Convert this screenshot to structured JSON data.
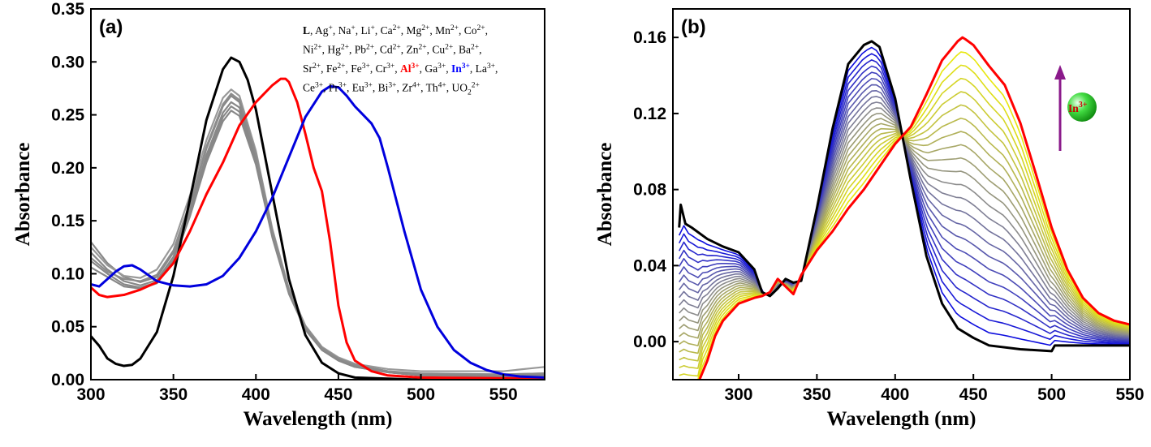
{
  "chart_data": [
    {
      "panel_label": "(a)",
      "type": "line",
      "xlabel": "Wavelength (nm)",
      "ylabel": "Absorbance",
      "xlim": [
        300,
        575
      ],
      "ylim": [
        0,
        0.35
      ],
      "xticks": [
        300,
        350,
        400,
        450,
        500,
        550
      ],
      "yticks": [
        0.0,
        0.05,
        0.1,
        0.15,
        0.2,
        0.25,
        0.3,
        0.35
      ],
      "grid": false,
      "legend_lines": [
        [
          {
            "t": "L",
            "b": true
          },
          {
            "t": ", Ag"
          },
          {
            "sup": "+"
          },
          {
            "t": ", Na"
          },
          {
            "sup": "+"
          },
          {
            "t": ", Li"
          },
          {
            "sup": "+"
          },
          {
            "t": ", Ca"
          },
          {
            "sup": "2+"
          },
          {
            "t": ", Mg"
          },
          {
            "sup": "2+"
          },
          {
            "t": ", Mn"
          },
          {
            "sup": "2+"
          },
          {
            "t": ", Co"
          },
          {
            "sup": "2+"
          },
          {
            "t": ","
          }
        ],
        [
          {
            "t": "Ni"
          },
          {
            "sup": "2+"
          },
          {
            "t": ", Hg"
          },
          {
            "sup": "2+"
          },
          {
            "t": ", Pb"
          },
          {
            "sup": "2+"
          },
          {
            "t": ", Cd"
          },
          {
            "sup": "2+"
          },
          {
            "t": ", Zn"
          },
          {
            "sup": "2+"
          },
          {
            "t": ", Cu"
          },
          {
            "sup": "2+"
          },
          {
            "t": ", Ba"
          },
          {
            "sup": "2+"
          },
          {
            "t": ","
          }
        ],
        [
          {
            "t": "Sr"
          },
          {
            "sup": "2+"
          },
          {
            "t": ", Fe"
          },
          {
            "sup": "2+"
          },
          {
            "t": ", Fe"
          },
          {
            "sup": "3+"
          },
          {
            "t": ", Cr"
          },
          {
            "sup": "3+"
          },
          {
            "t": ", "
          },
          {
            "t": "Al",
            "b": true,
            "c": "#ff0000"
          },
          {
            "sup": "3+",
            "b": true,
            "c": "#ff0000"
          },
          {
            "t": ", Ga"
          },
          {
            "sup": "3+"
          },
          {
            "t": ", "
          },
          {
            "t": "In",
            "b": true,
            "c": "#0000ff"
          },
          {
            "sup": "3+",
            "b": true,
            "c": "#0000ff"
          },
          {
            "t": ", La"
          },
          {
            "sup": "3+"
          },
          {
            "t": ","
          }
        ],
        [
          {
            "t": "Ce"
          },
          {
            "sup": "3+"
          },
          {
            "t": ", Pr"
          },
          {
            "sup": "3+"
          },
          {
            "t": ", Eu"
          },
          {
            "sup": "3+"
          },
          {
            "t": ", Bi"
          },
          {
            "sup": "3+"
          },
          {
            "t": ", Zr"
          },
          {
            "sup": "4+"
          },
          {
            "t": ", Th"
          },
          {
            "sup": "4+"
          },
          {
            "t": ", UO"
          },
          {
            "sub": "2"
          },
          {
            "sup": "2+"
          }
        ]
      ],
      "series": [
        {
          "color": "#888888",
          "x": [
            300,
            310,
            320,
            330,
            340,
            350,
            360,
            370,
            380,
            385,
            390,
            400,
            410,
            420,
            430,
            440,
            450,
            460,
            480,
            500,
            550,
            575
          ],
          "y": [
            0.13,
            0.11,
            0.097,
            0.092,
            0.097,
            0.12,
            0.165,
            0.218,
            0.258,
            0.268,
            0.262,
            0.212,
            0.14,
            0.085,
            0.05,
            0.03,
            0.02,
            0.014,
            0.008,
            0.005,
            0.005,
            0.006
          ]
        },
        {
          "color": "#888888",
          "x": [
            300,
            310,
            320,
            330,
            340,
            350,
            360,
            370,
            380,
            385,
            390,
            400,
            410,
            420,
            430,
            440,
            450,
            460,
            480,
            500,
            550,
            575
          ],
          "y": [
            0.12,
            0.104,
            0.093,
            0.089,
            0.094,
            0.116,
            0.16,
            0.212,
            0.252,
            0.262,
            0.257,
            0.209,
            0.138,
            0.083,
            0.049,
            0.029,
            0.019,
            0.013,
            0.007,
            0.004,
            0.004,
            0.005
          ]
        },
        {
          "color": "#888888",
          "x": [
            300,
            310,
            320,
            330,
            340,
            350,
            360,
            370,
            380,
            385,
            390,
            400,
            410,
            420,
            430,
            440,
            450,
            460,
            480,
            500,
            550,
            575
          ],
          "y": [
            0.112,
            0.1,
            0.09,
            0.087,
            0.092,
            0.113,
            0.157,
            0.208,
            0.248,
            0.258,
            0.253,
            0.206,
            0.136,
            0.082,
            0.048,
            0.028,
            0.018,
            0.012,
            0.007,
            0.004,
            0.004,
            0.004
          ]
        },
        {
          "color": "#888888",
          "x": [
            300,
            310,
            320,
            330,
            340,
            350,
            360,
            370,
            380,
            385,
            390,
            400,
            410,
            420,
            430,
            440,
            450,
            460,
            480,
            500,
            550,
            575
          ],
          "y": [
            0.106,
            0.097,
            0.088,
            0.086,
            0.091,
            0.111,
            0.154,
            0.205,
            0.244,
            0.254,
            0.249,
            0.203,
            0.134,
            0.081,
            0.047,
            0.028,
            0.018,
            0.012,
            0.007,
            0.004,
            0.003,
            0.004
          ]
        },
        {
          "color": "#999999",
          "x": [
            300,
            310,
            320,
            330,
            340,
            350,
            360,
            370,
            380,
            385,
            390,
            400,
            410,
            420,
            430,
            440,
            450,
            460,
            480,
            500,
            550,
            575
          ],
          "y": [
            0.125,
            0.108,
            0.098,
            0.096,
            0.104,
            0.128,
            0.174,
            0.226,
            0.266,
            0.274,
            0.268,
            0.216,
            0.142,
            0.086,
            0.051,
            0.031,
            0.021,
            0.015,
            0.01,
            0.008,
            0.008,
            0.012
          ]
        },
        {
          "color": "#8c8c8c",
          "x": [
            300,
            310,
            320,
            330,
            340,
            350,
            360,
            370,
            380,
            385,
            390,
            400,
            410,
            420,
            430,
            440,
            450,
            460,
            480,
            500,
            550,
            575
          ],
          "y": [
            0.115,
            0.102,
            0.095,
            0.093,
            0.099,
            0.122,
            0.167,
            0.22,
            0.26,
            0.27,
            0.264,
            0.213,
            0.14,
            0.084,
            0.05,
            0.03,
            0.02,
            0.014,
            0.008,
            0.006,
            0.005,
            0.006
          ]
        },
        {
          "color": "#000000",
          "x": [
            300,
            305,
            310,
            315,
            320,
            325,
            330,
            340,
            350,
            360,
            370,
            380,
            385,
            390,
            395,
            400,
            410,
            420,
            430,
            440,
            450,
            460,
            480,
            500,
            575
          ],
          "y": [
            0.041,
            0.032,
            0.02,
            0.015,
            0.013,
            0.014,
            0.02,
            0.045,
            0.098,
            0.17,
            0.245,
            0.293,
            0.304,
            0.3,
            0.283,
            0.255,
            0.175,
            0.095,
            0.042,
            0.016,
            0.006,
            0.002,
            0.001,
            0.0,
            0.0
          ]
        },
        {
          "color": "#ff0000",
          "x": [
            300,
            305,
            310,
            320,
            330,
            340,
            350,
            360,
            370,
            380,
            390,
            400,
            405,
            410,
            415,
            418,
            420,
            425,
            430,
            435,
            440,
            445,
            450,
            455,
            460,
            470,
            480,
            500,
            575
          ],
          "y": [
            0.087,
            0.08,
            0.078,
            0.08,
            0.085,
            0.092,
            0.11,
            0.14,
            0.175,
            0.205,
            0.24,
            0.262,
            0.27,
            0.278,
            0.284,
            0.284,
            0.281,
            0.262,
            0.232,
            0.2,
            0.178,
            0.13,
            0.07,
            0.035,
            0.018,
            0.008,
            0.004,
            0.002,
            0.001
          ]
        },
        {
          "color": "#0000dd",
          "x": [
            300,
            305,
            310,
            315,
            320,
            325,
            330,
            340,
            350,
            360,
            370,
            380,
            390,
            400,
            410,
            420,
            430,
            440,
            445,
            450,
            455,
            460,
            465,
            470,
            475,
            480,
            490,
            500,
            510,
            520,
            530,
            540,
            550,
            560,
            575
          ],
          "y": [
            0.09,
            0.088,
            0.095,
            0.102,
            0.107,
            0.108,
            0.104,
            0.093,
            0.089,
            0.088,
            0.09,
            0.098,
            0.115,
            0.14,
            0.172,
            0.21,
            0.248,
            0.272,
            0.277,
            0.276,
            0.268,
            0.258,
            0.25,
            0.242,
            0.228,
            0.2,
            0.14,
            0.085,
            0.05,
            0.028,
            0.016,
            0.009,
            0.005,
            0.003,
            0.002
          ]
        }
      ]
    },
    {
      "panel_label": "(b)",
      "type": "line",
      "xlabel": "Wavelength (nm)",
      "ylabel": "Absorbance",
      "xlim": [
        258,
        550
      ],
      "ylim": [
        -0.02,
        0.175
      ],
      "xticks": [
        300,
        350,
        400,
        450,
        500,
        550
      ],
      "yticks": [
        0.0,
        0.04,
        0.08,
        0.12,
        0.16
      ],
      "grid": false,
      "annotation": {
        "ion": "In",
        "charge": "3+"
      },
      "series_start": {
        "color": "#000000",
        "x": [
          262,
          263,
          266,
          270,
          280,
          290,
          300,
          310,
          315,
          320,
          325,
          330,
          335,
          340,
          350,
          360,
          370,
          380,
          385,
          390,
          400,
          410,
          420,
          430,
          440,
          450,
          460,
          480,
          500,
          502,
          550
        ],
        "y": [
          0.06,
          0.072,
          0.062,
          0.06,
          0.054,
          0.05,
          0.047,
          0.038,
          0.026,
          0.024,
          0.028,
          0.033,
          0.031,
          0.032,
          0.07,
          0.112,
          0.146,
          0.156,
          0.158,
          0.155,
          0.128,
          0.085,
          0.045,
          0.02,
          0.007,
          0.002,
          -0.002,
          -0.004,
          -0.005,
          -0.002,
          -0.002
        ]
      },
      "series_end": {
        "color": "#ff0000",
        "x": [
          275,
          280,
          285,
          290,
          300,
          310,
          315,
          320,
          325,
          330,
          335,
          340,
          350,
          360,
          370,
          380,
          390,
          400,
          410,
          420,
          430,
          440,
          443,
          445,
          450,
          460,
          470,
          480,
          490,
          500,
          510,
          520,
          530,
          540,
          550
        ],
        "y": [
          -0.02,
          -0.01,
          0.003,
          0.011,
          0.02,
          0.023,
          0.024,
          0.026,
          0.033,
          0.029,
          0.025,
          0.035,
          0.048,
          0.058,
          0.07,
          0.08,
          0.092,
          0.104,
          0.113,
          0.13,
          0.148,
          0.158,
          0.16,
          0.159,
          0.156,
          0.145,
          0.135,
          0.115,
          0.088,
          0.06,
          0.038,
          0.023,
          0.015,
          0.011,
          0.009
        ]
      },
      "n_steps": 22
    }
  ]
}
